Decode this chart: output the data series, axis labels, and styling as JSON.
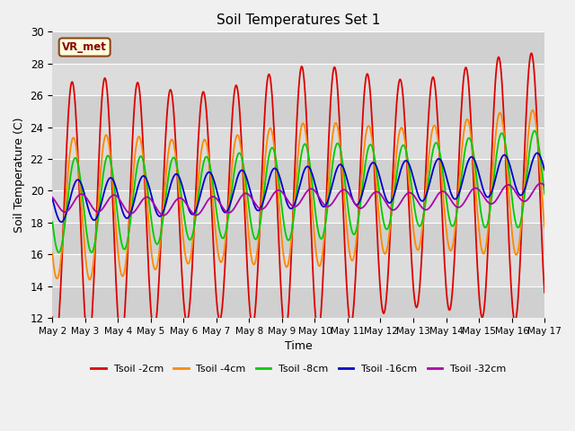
{
  "title": "Soil Temperatures Set 1",
  "xlabel": "Time",
  "ylabel": "Soil Temperature (C)",
  "ylim": [
    12,
    30
  ],
  "xlim": [
    0,
    15
  ],
  "x_tick_labels": [
    "May 2",
    "May 3",
    "May 4",
    "May 5",
    "May 6",
    "May 7",
    "May 8",
    "May 9",
    "May 10",
    "May 11",
    "May 12",
    "May 13",
    "May 14",
    "May 15",
    "May 16",
    "May 17"
  ],
  "annotation": "VR_met",
  "line_colors": [
    "#dd0000",
    "#ff8800",
    "#00cc00",
    "#0000cc",
    "#aa00aa"
  ],
  "line_labels": [
    "Tsoil -2cm",
    "Tsoil -4cm",
    "Tsoil -8cm",
    "Tsoil -16cm",
    "Tsoil -32cm"
  ],
  "line_width": 1.3,
  "num_points": 720,
  "base_mean": 18.5,
  "trend": 0.12,
  "amp_2cm": 7.8,
  "amp_4cm": 4.2,
  "amp_8cm": 2.8,
  "amp_16cm": 1.3,
  "amp_32cm": 0.55,
  "phase_peak": 0.6,
  "phase_lag_4": 0.25,
  "phase_lag_8": 0.6,
  "phase_lag_16": 1.1,
  "phase_lag_32": 1.8,
  "yticks": [
    12,
    14,
    16,
    18,
    20,
    22,
    24,
    26,
    28,
    30
  ],
  "band_colors": [
    "#d0d0d0",
    "#dcdcdc"
  ],
  "fig_bg": "#f0f0f0"
}
